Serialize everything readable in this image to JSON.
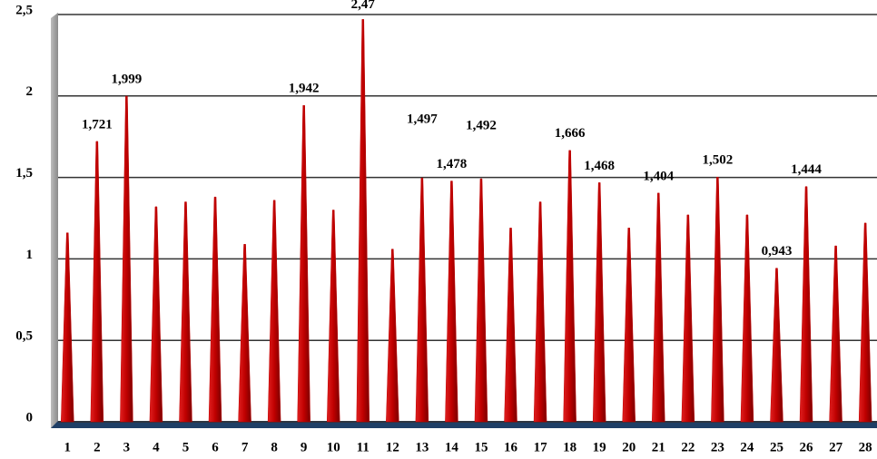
{
  "chart_data": {
    "type": "bar",
    "categories": [
      1,
      2,
      3,
      4,
      5,
      6,
      7,
      8,
      9,
      10,
      11,
      12,
      13,
      14,
      15,
      16,
      17,
      18,
      19,
      20,
      21,
      22,
      23,
      24,
      25,
      26,
      27,
      28
    ],
    "values": [
      1.16,
      1.721,
      1.999,
      1.32,
      1.35,
      1.38,
      1.09,
      1.36,
      1.942,
      1.3,
      2.47,
      1.06,
      1.497,
      1.478,
      1.492,
      1.19,
      1.35,
      1.666,
      1.468,
      1.19,
      1.404,
      1.27,
      1.502,
      1.27,
      0.943,
      1.444,
      1.08,
      1.22
    ],
    "value_labels": [
      null,
      "1,721",
      "1,999",
      null,
      null,
      null,
      null,
      null,
      "1,942",
      null,
      "2,47",
      null,
      "1,497",
      "1,478",
      "1,492",
      null,
      null,
      "1,666",
      "1,468",
      null,
      "1,404",
      null,
      "1,502",
      null,
      "0,943",
      "1,444",
      null,
      null
    ],
    "color": "#c00000",
    "ylim": [
      0,
      2.5
    ],
    "yticks": [
      0,
      {
        "value": 0.5,
        "label": "0,5"
      },
      1,
      {
        "value": 1.5,
        "label": "1,5"
      },
      2,
      {
        "value": 2.5,
        "label": "2,5"
      }
    ],
    "grid": true
  }
}
